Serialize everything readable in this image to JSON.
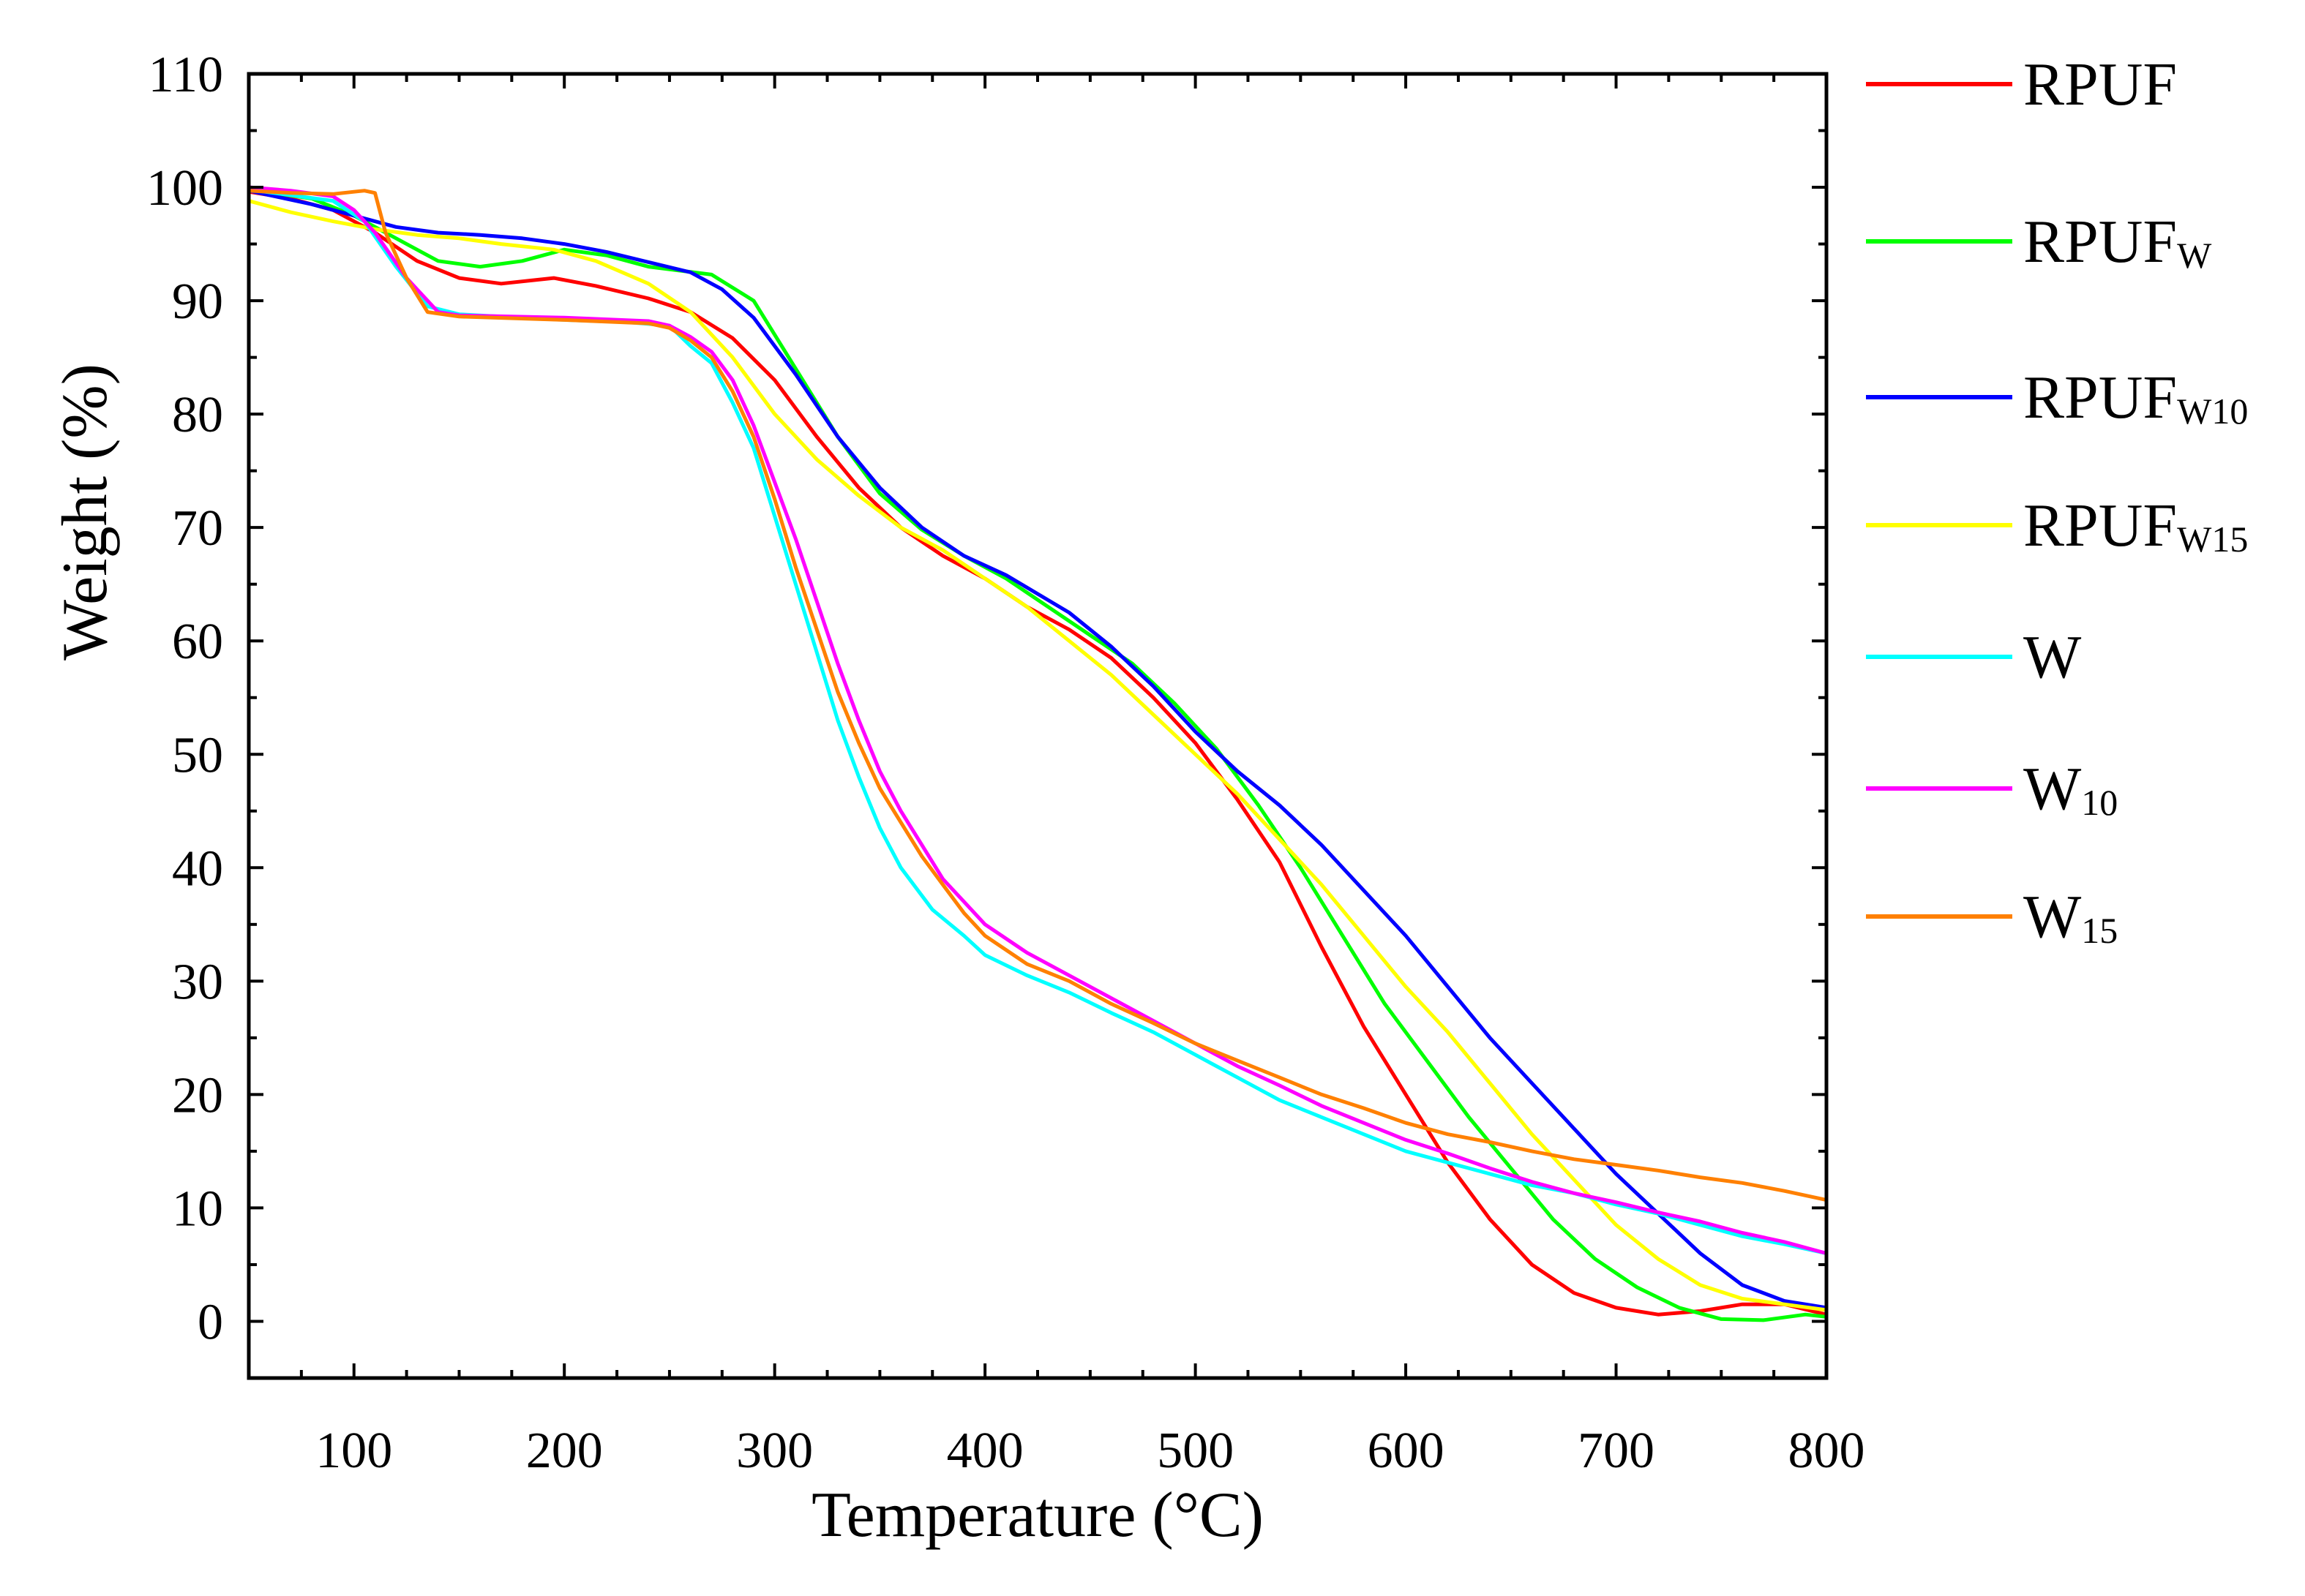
{
  "chart_data": {
    "type": "line",
    "title": "",
    "xlabel": "Temperature (°C)",
    "ylabel": "Weight (%)",
    "xlim": [
      50,
      800
    ],
    "ylim": [
      -5,
      110
    ],
    "xticks": [
      100,
      200,
      300,
      400,
      500,
      600,
      700,
      800
    ],
    "yticks": [
      0,
      10,
      20,
      30,
      40,
      50,
      60,
      70,
      80,
      90,
      100,
      110
    ],
    "legend_position": "right",
    "series": [
      {
        "name": "RPUF",
        "main": "RPUF",
        "sub": "",
        "color": "#ff0000",
        "points": [
          [
            50,
            99.6
          ],
          [
            70,
            99
          ],
          [
            90,
            98
          ],
          [
            110,
            96
          ],
          [
            130,
            93.5
          ],
          [
            150,
            92
          ],
          [
            170,
            91.5
          ],
          [
            195,
            92
          ],
          [
            215,
            91.3
          ],
          [
            240,
            90.2
          ],
          [
            260,
            89
          ],
          [
            280,
            86.7
          ],
          [
            300,
            83
          ],
          [
            320,
            78
          ],
          [
            340,
            73.5
          ],
          [
            360,
            70
          ],
          [
            380,
            67.5
          ],
          [
            400,
            65.5
          ],
          [
            420,
            63
          ],
          [
            440,
            61
          ],
          [
            460,
            58.5
          ],
          [
            480,
            55
          ],
          [
            500,
            51
          ],
          [
            520,
            46
          ],
          [
            540,
            40.5
          ],
          [
            560,
            33
          ],
          [
            580,
            26
          ],
          [
            600,
            20
          ],
          [
            620,
            14
          ],
          [
            640,
            9
          ],
          [
            660,
            5
          ],
          [
            680,
            2.5
          ],
          [
            700,
            1.2
          ],
          [
            720,
            0.6
          ],
          [
            740,
            0.9
          ],
          [
            760,
            1.5
          ],
          [
            780,
            1.5
          ],
          [
            800,
            0.6
          ]
        ]
      },
      {
        "name": "RPUFW",
        "main": "RPUF",
        "sub": "W",
        "color": "#00ff00",
        "points": [
          [
            50,
            99.8
          ],
          [
            80,
            99
          ],
          [
            100,
            97.5
          ],
          [
            120,
            95.5
          ],
          [
            140,
            93.5
          ],
          [
            160,
            93
          ],
          [
            180,
            93.5
          ],
          [
            200,
            94.5
          ],
          [
            220,
            94
          ],
          [
            240,
            93
          ],
          [
            270,
            92.3
          ],
          [
            290,
            90
          ],
          [
            310,
            84
          ],
          [
            330,
            78
          ],
          [
            350,
            73
          ],
          [
            370,
            69.8
          ],
          [
            390,
            67.5
          ],
          [
            410,
            65.5
          ],
          [
            430,
            63
          ],
          [
            450,
            60.5
          ],
          [
            470,
            58
          ],
          [
            490,
            54.5
          ],
          [
            510,
            50.5
          ],
          [
            530,
            45.5
          ],
          [
            550,
            40
          ],
          [
            570,
            34
          ],
          [
            590,
            28
          ],
          [
            610,
            23
          ],
          [
            630,
            18
          ],
          [
            650,
            13.5
          ],
          [
            670,
            9
          ],
          [
            690,
            5.5
          ],
          [
            710,
            3
          ],
          [
            730,
            1.2
          ],
          [
            750,
            0.2
          ],
          [
            770,
            0.1
          ],
          [
            790,
            0.6
          ],
          [
            800,
            0.4
          ]
        ]
      },
      {
        "name": "RPUFW10",
        "main": "RPUF",
        "sub": "W10",
        "color": "#0000ff",
        "points": [
          [
            50,
            99.7
          ],
          [
            80,
            98.5
          ],
          [
            100,
            97.5
          ],
          [
            120,
            96.5
          ],
          [
            140,
            96
          ],
          [
            160,
            95.8
          ],
          [
            180,
            95.5
          ],
          [
            200,
            95
          ],
          [
            220,
            94.3
          ],
          [
            240,
            93.4
          ],
          [
            260,
            92.5
          ],
          [
            275,
            91
          ],
          [
            290,
            88.5
          ],
          [
            310,
            83.5
          ],
          [
            330,
            78
          ],
          [
            350,
            73.5
          ],
          [
            370,
            70
          ],
          [
            390,
            67.5
          ],
          [
            410,
            65.8
          ],
          [
            440,
            62.5
          ],
          [
            460,
            59.5
          ],
          [
            480,
            56
          ],
          [
            500,
            52
          ],
          [
            520,
            48.5
          ],
          [
            540,
            45.5
          ],
          [
            560,
            42
          ],
          [
            580,
            38
          ],
          [
            600,
            34
          ],
          [
            620,
            29.5
          ],
          [
            640,
            25
          ],
          [
            660,
            21
          ],
          [
            680,
            17
          ],
          [
            700,
            13
          ],
          [
            720,
            9.5
          ],
          [
            740,
            6
          ],
          [
            760,
            3.2
          ],
          [
            780,
            1.8
          ],
          [
            800,
            1.2
          ]
        ]
      },
      {
        "name": "RPUFW15",
        "main": "RPUF",
        "sub": "W15",
        "color": "#ffff00",
        "points": [
          [
            50,
            98.8
          ],
          [
            70,
            97.8
          ],
          [
            90,
            97
          ],
          [
            110,
            96.3
          ],
          [
            130,
            95.8
          ],
          [
            150,
            95.5
          ],
          [
            170,
            95
          ],
          [
            195,
            94.5
          ],
          [
            215,
            93.5
          ],
          [
            240,
            91.5
          ],
          [
            260,
            89
          ],
          [
            280,
            85
          ],
          [
            300,
            80
          ],
          [
            320,
            76
          ],
          [
            340,
            72.8
          ],
          [
            360,
            70
          ],
          [
            380,
            68
          ],
          [
            400,
            65.5
          ],
          [
            420,
            63
          ],
          [
            440,
            60
          ],
          [
            460,
            57
          ],
          [
            480,
            53.5
          ],
          [
            500,
            50
          ],
          [
            520,
            46.5
          ],
          [
            540,
            42.5
          ],
          [
            560,
            38.5
          ],
          [
            580,
            34
          ],
          [
            600,
            29.5
          ],
          [
            620,
            25.5
          ],
          [
            640,
            21
          ],
          [
            660,
            16.5
          ],
          [
            680,
            12.5
          ],
          [
            700,
            8.5
          ],
          [
            720,
            5.5
          ],
          [
            740,
            3.2
          ],
          [
            760,
            2
          ],
          [
            780,
            1.5
          ],
          [
            800,
            1
          ]
        ]
      },
      {
        "name": "W",
        "main": "W",
        "sub": "",
        "color": "#00ffff",
        "points": [
          [
            50,
            99.8
          ],
          [
            70,
            99.3
          ],
          [
            90,
            98.8
          ],
          [
            105,
            97
          ],
          [
            120,
            93
          ],
          [
            135,
            89.5
          ],
          [
            150,
            88.8
          ],
          [
            200,
            88.3
          ],
          [
            230,
            88.1
          ],
          [
            250,
            87.8
          ],
          [
            260,
            86
          ],
          [
            270,
            84.5
          ],
          [
            280,
            81
          ],
          [
            290,
            77
          ],
          [
            300,
            71
          ],
          [
            310,
            65
          ],
          [
            320,
            59
          ],
          [
            330,
            53
          ],
          [
            340,
            48
          ],
          [
            350,
            43.5
          ],
          [
            360,
            40
          ],
          [
            375,
            36.3
          ],
          [
            390,
            34
          ],
          [
            400,
            32.3
          ],
          [
            420,
            30.5
          ],
          [
            440,
            29
          ],
          [
            460,
            27.2
          ],
          [
            480,
            25.5
          ],
          [
            500,
            23.5
          ],
          [
            520,
            21.5
          ],
          [
            540,
            19.5
          ],
          [
            560,
            18
          ],
          [
            580,
            16.5
          ],
          [
            600,
            15
          ],
          [
            620,
            14
          ],
          [
            640,
            13
          ],
          [
            660,
            12
          ],
          [
            680,
            11.3
          ],
          [
            700,
            10.3
          ],
          [
            720,
            9.5
          ],
          [
            740,
            8.5
          ],
          [
            760,
            7.5
          ],
          [
            780,
            6.8
          ],
          [
            800,
            6
          ]
        ]
      },
      {
        "name": "W10",
        "main": "W",
        "sub": "10",
        "color": "#ff00ff",
        "points": [
          [
            50,
            100
          ],
          [
            70,
            99.7
          ],
          [
            90,
            99.2
          ],
          [
            100,
            98
          ],
          [
            110,
            96
          ],
          [
            125,
            92
          ],
          [
            140,
            89
          ],
          [
            150,
            88.7
          ],
          [
            200,
            88.5
          ],
          [
            240,
            88.2
          ],
          [
            250,
            87.8
          ],
          [
            260,
            86.8
          ],
          [
            270,
            85.5
          ],
          [
            280,
            83
          ],
          [
            290,
            79
          ],
          [
            300,
            74
          ],
          [
            310,
            69
          ],
          [
            320,
            63.5
          ],
          [
            330,
            58
          ],
          [
            340,
            53
          ],
          [
            350,
            48.5
          ],
          [
            360,
            45
          ],
          [
            370,
            42
          ],
          [
            380,
            39
          ],
          [
            390,
            37
          ],
          [
            400,
            35
          ],
          [
            420,
            32.5
          ],
          [
            440,
            30.5
          ],
          [
            460,
            28.5
          ],
          [
            480,
            26.5
          ],
          [
            500,
            24.5
          ],
          [
            520,
            22.5
          ],
          [
            540,
            20.8
          ],
          [
            560,
            19
          ],
          [
            580,
            17.5
          ],
          [
            600,
            16
          ],
          [
            620,
            14.8
          ],
          [
            640,
            13.5
          ],
          [
            660,
            12.3
          ],
          [
            680,
            11.3
          ],
          [
            700,
            10.5
          ],
          [
            720,
            9.6
          ],
          [
            740,
            8.8
          ],
          [
            760,
            7.8
          ],
          [
            780,
            7
          ],
          [
            800,
            6
          ]
        ]
      },
      {
        "name": "W15",
        "main": "W",
        "sub": "15",
        "color": "#ff8000",
        "points": [
          [
            50,
            99.7
          ],
          [
            70,
            99.5
          ],
          [
            90,
            99.4
          ],
          [
            100,
            99.6
          ],
          [
            105,
            99.7
          ],
          [
            110,
            99.5
          ],
          [
            115,
            96
          ],
          [
            125,
            92
          ],
          [
            135,
            89
          ],
          [
            150,
            88.6
          ],
          [
            200,
            88.3
          ],
          [
            240,
            88
          ],
          [
            250,
            87.6
          ],
          [
            260,
            86.5
          ],
          [
            270,
            85
          ],
          [
            280,
            82
          ],
          [
            290,
            78
          ],
          [
            300,
            72.5
          ],
          [
            310,
            66.5
          ],
          [
            320,
            61
          ],
          [
            330,
            55.5
          ],
          [
            340,
            51
          ],
          [
            350,
            47
          ],
          [
            360,
            44
          ],
          [
            370,
            41
          ],
          [
            380,
            38.5
          ],
          [
            390,
            36
          ],
          [
            400,
            34
          ],
          [
            420,
            31.5
          ],
          [
            440,
            30
          ],
          [
            460,
            28
          ],
          [
            480,
            26.3
          ],
          [
            500,
            24.5
          ],
          [
            520,
            23
          ],
          [
            540,
            21.5
          ],
          [
            560,
            20
          ],
          [
            580,
            18.8
          ],
          [
            600,
            17.5
          ],
          [
            620,
            16.5
          ],
          [
            640,
            15.8
          ],
          [
            660,
            15
          ],
          [
            680,
            14.3
          ],
          [
            700,
            13.8
          ],
          [
            720,
            13.3
          ],
          [
            740,
            12.7
          ],
          [
            760,
            12.2
          ],
          [
            780,
            11.5
          ],
          [
            800,
            10.7
          ]
        ]
      }
    ]
  }
}
